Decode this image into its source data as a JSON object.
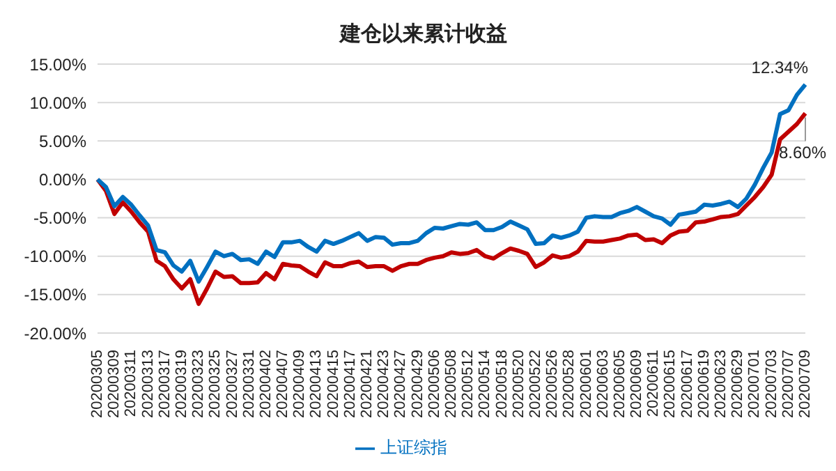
{
  "chart_data": {
    "type": "line",
    "title": "建仓以来累计收益",
    "categories": [
      "20200305",
      null,
      "20200309",
      null,
      "20200311",
      null,
      "20200313",
      null,
      "20200317",
      null,
      "20200319",
      null,
      "20200323",
      null,
      "20200325",
      null,
      "20200327",
      null,
      "20200331",
      null,
      "20200402",
      null,
      "20200407",
      null,
      "20200409",
      null,
      "20200413",
      null,
      "20200415",
      null,
      "20200417",
      null,
      "20200421",
      null,
      "20200423",
      null,
      "20200427",
      null,
      "20200429",
      null,
      "20200506",
      null,
      "20200508",
      null,
      "20200512",
      null,
      "20200514",
      null,
      "20200518",
      null,
      "20200520",
      null,
      "20200522",
      null,
      "20200526",
      null,
      "20200528",
      null,
      "20200601",
      null,
      "20200603",
      null,
      "20200605",
      null,
      "20200609",
      null,
      "20200611",
      null,
      "20200615",
      null,
      "20200617",
      null,
      "20200619",
      null,
      "20200623",
      null,
      "20200629",
      null,
      "20200701",
      null,
      "20200703",
      null,
      "20200707",
      null,
      "20200709"
    ],
    "series": [
      {
        "color": "#c00000",
        "values": [
          0,
          -1.5,
          -4.5,
          -3.0,
          -4.2,
          -5.6,
          -6.8,
          -10.6,
          -11.3,
          -13.0,
          -14.2,
          -13.0,
          -16.2,
          -14.2,
          -12.0,
          -12.7,
          -12.6,
          -13.5,
          -13.5,
          -13.4,
          -12.2,
          -13.0,
          -11.0,
          -11.2,
          -11.3,
          -12.0,
          -12.6,
          -10.8,
          -11.3,
          -11.3,
          -10.9,
          -10.7,
          -11.4,
          -11.3,
          -11.3,
          -11.9,
          -11.3,
          -11.0,
          -11.0,
          -10.5,
          -10.2,
          -10.0,
          -9.5,
          -9.7,
          -9.6,
          -9.2,
          -10.0,
          -10.3,
          -9.6,
          -9.0,
          -9.3,
          -9.7,
          -11.4,
          -10.8,
          -9.9,
          -10.2,
          -10.0,
          -9.4,
          -8.0,
          -8.1,
          -8.1,
          -7.9,
          -7.7,
          -7.3,
          -7.2,
          -7.9,
          -7.8,
          -8.3,
          -7.3,
          -6.8,
          -6.7,
          -5.6,
          -5.5,
          -5.2,
          -4.9,
          -4.8,
          -4.5,
          -3.4,
          -2.3,
          -1.0,
          0.6,
          5.2,
          6.2,
          7.2,
          8.6
        ],
        "value_labels": [
          null,
          null,
          null,
          null,
          null,
          null,
          null,
          null,
          null,
          null,
          null,
          null,
          null,
          null,
          null,
          null,
          null,
          null,
          null,
          null,
          null,
          null,
          null,
          null,
          null,
          null,
          null,
          null,
          null,
          null,
          null,
          null,
          null,
          null,
          null,
          null,
          null,
          null,
          null,
          null,
          null,
          null,
          null,
          null,
          null,
          null,
          null,
          null,
          null,
          null,
          null,
          null,
          null,
          null,
          null,
          null,
          null,
          null,
          null,
          null,
          null,
          null,
          null,
          null,
          null,
          null,
          null,
          null,
          null,
          null,
          null,
          null,
          null,
          null,
          null,
          null,
          null,
          null,
          null,
          null,
          null,
          null,
          null,
          null,
          "8.60%"
        ]
      },
      {
        "name": "上证综指",
        "color": "#0070c0",
        "values": [
          0,
          -1.0,
          -3.5,
          -2.3,
          -3.3,
          -4.7,
          -6.0,
          -9.2,
          -9.5,
          -11.2,
          -12.0,
          -10.6,
          -13.3,
          -11.4,
          -9.4,
          -10.0,
          -9.7,
          -10.5,
          -10.4,
          -11.0,
          -9.4,
          -10.1,
          -8.2,
          -8.2,
          -8.0,
          -8.8,
          -9.4,
          -8.0,
          -8.4,
          -8.0,
          -7.5,
          -7.0,
          -8.0,
          -7.5,
          -7.6,
          -8.5,
          -8.3,
          -8.3,
          -8.0,
          -7.0,
          -6.3,
          -6.4,
          -6.1,
          -5.8,
          -5.9,
          -5.6,
          -6.6,
          -6.6,
          -6.2,
          -5.5,
          -6.0,
          -6.5,
          -8.4,
          -8.3,
          -7.3,
          -7.6,
          -7.3,
          -6.8,
          -5.0,
          -4.8,
          -4.9,
          -4.9,
          -4.4,
          -4.1,
          -3.6,
          -4.2,
          -4.8,
          -5.1,
          -5.9,
          -4.6,
          -4.4,
          -4.2,
          -3.3,
          -3.4,
          -3.2,
          -2.9,
          -3.6,
          -2.5,
          -0.7,
          1.5,
          3.5,
          8.5,
          9.0,
          11.0,
          12.34
        ],
        "value_labels": [
          null,
          null,
          null,
          null,
          null,
          null,
          null,
          null,
          null,
          null,
          null,
          null,
          null,
          null,
          null,
          null,
          null,
          null,
          null,
          null,
          null,
          null,
          null,
          null,
          null,
          null,
          null,
          null,
          null,
          null,
          null,
          null,
          null,
          null,
          null,
          null,
          null,
          null,
          null,
          null,
          null,
          null,
          null,
          null,
          null,
          null,
          null,
          null,
          null,
          null,
          null,
          null,
          null,
          null,
          null,
          null,
          null,
          null,
          null,
          null,
          null,
          null,
          null,
          null,
          null,
          null,
          null,
          null,
          null,
          null,
          null,
          null,
          null,
          null,
          null,
          null,
          null,
          null,
          null,
          null,
          null,
          null,
          null,
          null,
          "12.34%"
        ]
      }
    ],
    "ylim": [
      -20,
      15
    ],
    "yticks": [
      {
        "value": -20,
        "label": "-20.00%"
      },
      {
        "value": -15,
        "label": "-15.00%"
      },
      {
        "value": -10,
        "label": "-10.00%"
      },
      {
        "value": -5,
        "label": "-5.00%"
      },
      {
        "value": 0,
        "label": "0.00%"
      },
      {
        "value": 5,
        "label": "5.00%"
      },
      {
        "value": 10,
        "label": "10.00%"
      },
      {
        "value": 15,
        "label": "15.00%"
      }
    ],
    "grid": "y",
    "legend": "bottom",
    "marker": "none",
    "line_style": "solid"
  }
}
